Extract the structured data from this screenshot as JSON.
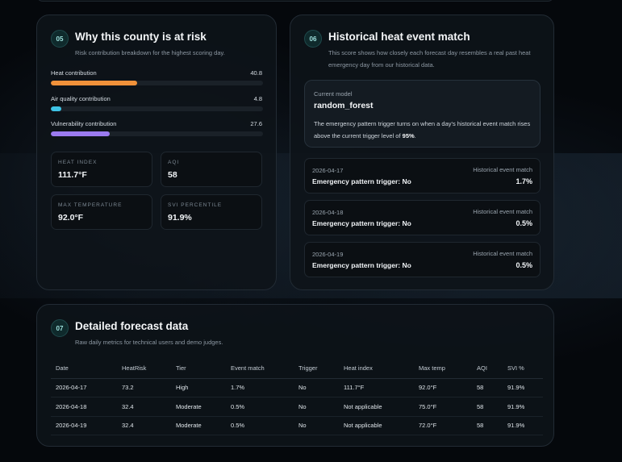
{
  "risk_card": {
    "badge": "05",
    "title": "Why this county is at risk",
    "subtitle": "Risk contribution breakdown for the highest scoring day.",
    "bars": [
      {
        "label": "Heat contribution",
        "value": "40.8",
        "percent": 40.8,
        "color": "#f0913a"
      },
      {
        "label": "Air quality contribution",
        "value": "4.8",
        "percent": 4.8,
        "color": "#3ec3e6"
      },
      {
        "label": "Vulnerability contribution",
        "value": "27.6",
        "percent": 27.6,
        "color": "#9b7bf0"
      }
    ],
    "metrics": [
      {
        "label": "HEAT INDEX",
        "value": "111.7°F"
      },
      {
        "label": "AQI",
        "value": "58"
      },
      {
        "label": "MAX TEMPERATURE",
        "value": "92.0°F"
      },
      {
        "label": "SVI PERCENTILE",
        "value": "91.9%"
      }
    ]
  },
  "history_card": {
    "badge": "06",
    "title": "Historical heat event match",
    "subtitle": "This score shows how closely each forecast day resembles a real past heat emergency day from our historical data.",
    "model": {
      "label": "Current model",
      "name": "random_forest",
      "description_prefix": "The emergency pattern trigger turns on when a day's historical event match rises above the current trigger level of ",
      "trigger_level": "95%",
      "description_suffix": "."
    },
    "events": [
      {
        "date": "2026-04-17",
        "trigger": "Emergency pattern trigger: No",
        "label": "Historical event match",
        "value": "1.7%"
      },
      {
        "date": "2026-04-18",
        "trigger": "Emergency pattern trigger: No",
        "label": "Historical event match",
        "value": "0.5%"
      },
      {
        "date": "2026-04-19",
        "trigger": "Emergency pattern trigger: No",
        "label": "Historical event match",
        "value": "0.5%"
      }
    ]
  },
  "forecast_card": {
    "badge": "07",
    "title": "Detailed forecast data",
    "subtitle": "Raw daily metrics for technical users and demo judges.",
    "columns": [
      "Date",
      "HeatRisk",
      "Tier",
      "Event match",
      "Trigger",
      "Heat index",
      "Max temp",
      "AQI",
      "SVI %"
    ],
    "rows": [
      [
        "2026-04-17",
        "73.2",
        "High",
        "1.7%",
        "No",
        "111.7°F",
        "92.0°F",
        "58",
        "91.9%"
      ],
      [
        "2026-04-18",
        "32.4",
        "Moderate",
        "0.5%",
        "No",
        "Not applicable",
        "75.0°F",
        "58",
        "91.9%"
      ],
      [
        "2026-04-19",
        "32.4",
        "Moderate",
        "0.5%",
        "No",
        "Not applicable",
        "72.0°F",
        "58",
        "91.9%"
      ]
    ]
  }
}
